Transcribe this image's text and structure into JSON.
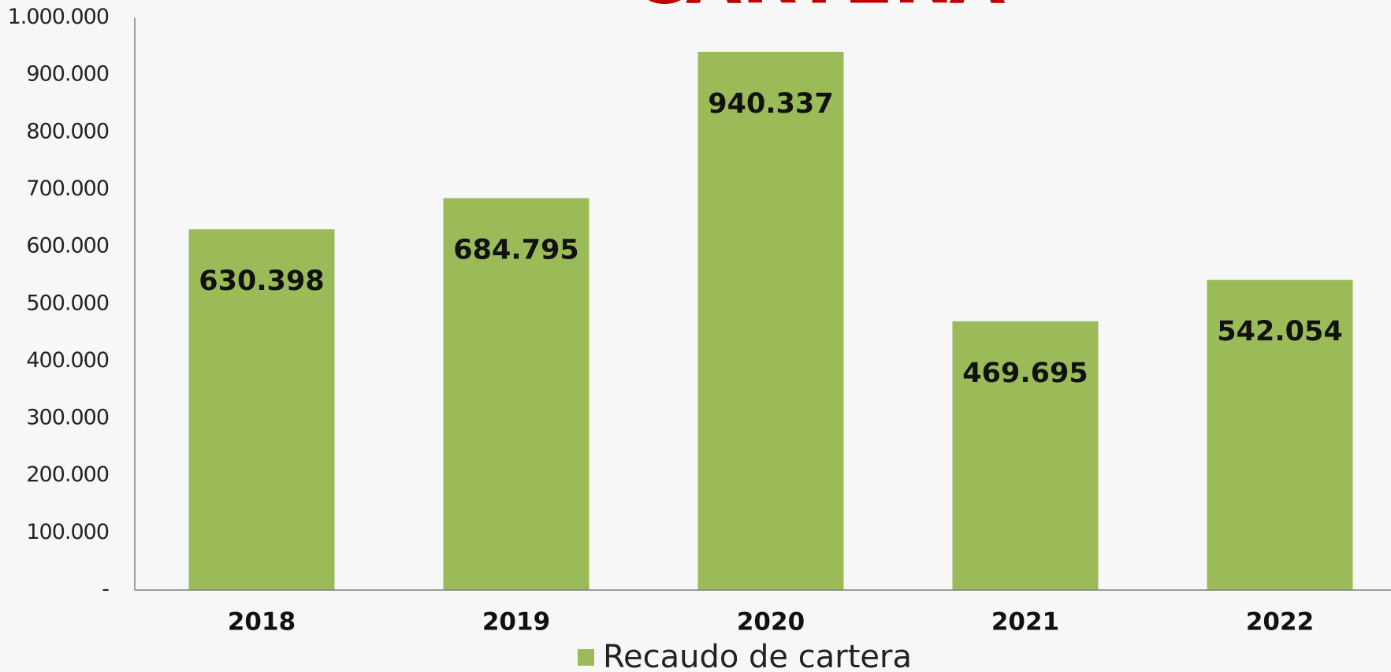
{
  "chart_data": {
    "type": "bar",
    "title": "CARTERA",
    "categories": [
      "2018",
      "2019",
      "2020",
      "2021",
      "2022"
    ],
    "series": [
      {
        "name": "Recaudo de cartera",
        "color": "#9bbb59",
        "values": [
          630398,
          684795,
          940337,
          469695,
          542054
        ],
        "value_labels": [
          "630.398",
          "684.795",
          "940.337",
          "469.695",
          "542.054"
        ]
      }
    ],
    "ylim": [
      0,
      1000000
    ],
    "yticks": [
      {
        "value": 0,
        "label": "-"
      },
      {
        "value": 100000,
        "label": "100.000"
      },
      {
        "value": 200000,
        "label": "200.000"
      },
      {
        "value": 300000,
        "label": "300.000"
      },
      {
        "value": 400000,
        "label": "400.000"
      },
      {
        "value": 500000,
        "label": "500.000"
      },
      {
        "value": 600000,
        "label": "600.000"
      },
      {
        "value": 700000,
        "label": "700.000"
      },
      {
        "value": 800000,
        "label": "800.000"
      },
      {
        "value": 900000,
        "label": "900.000"
      },
      {
        "value": 1000000,
        "label": "1.000.000"
      }
    ],
    "grid": false,
    "legend": "bottom"
  }
}
